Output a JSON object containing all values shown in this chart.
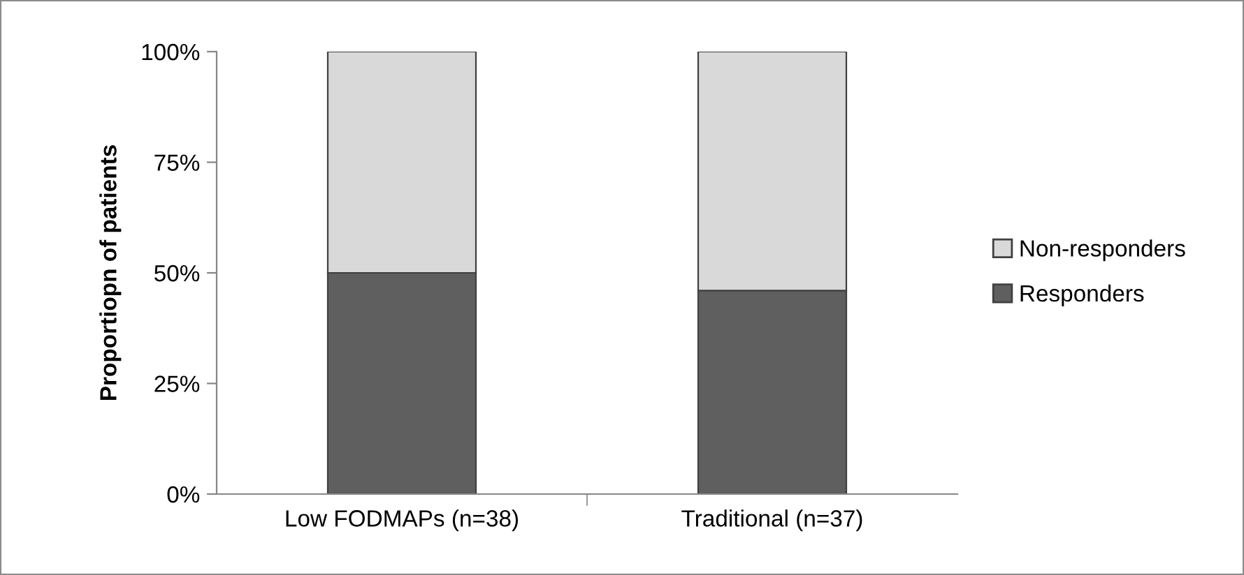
{
  "chart_data": {
    "type": "bar",
    "stacked": true,
    "ylabel": "Proportiopn of patients",
    "categories": [
      "Low FODMAPs (n=38)",
      "Traditional (n=37)"
    ],
    "series": [
      {
        "name": "Responders",
        "color": "#5f5f5f",
        "values": [
          50,
          46
        ]
      },
      {
        "name": "Non-responders",
        "color": "#d9d9d9",
        "values": [
          50,
          54
        ]
      }
    ],
    "ylim": [
      0,
      100
    ],
    "yticks": [
      {
        "value": 0,
        "label": "0%"
      },
      {
        "value": 25,
        "label": "25%"
      },
      {
        "value": 50,
        "label": "50%"
      },
      {
        "value": 75,
        "label": "75%"
      },
      {
        "value": 100,
        "label": "100%"
      }
    ],
    "legend": "right",
    "grid": false
  }
}
